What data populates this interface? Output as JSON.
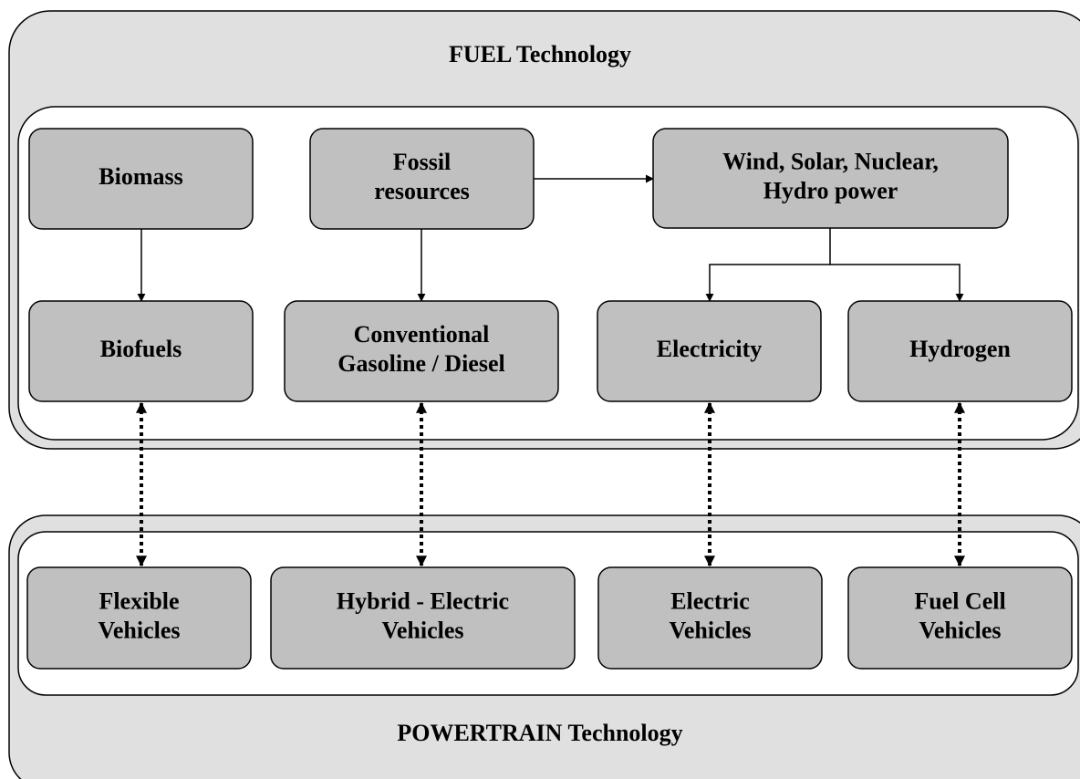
{
  "fuel": {
    "title": "FUEL Technology"
  },
  "powertrain": {
    "title": "POWERTRAIN Technology"
  },
  "nodes": [
    {
      "lines": [
        "Biomass"
      ]
    },
    {
      "lines": [
        "Fossil",
        "resources"
      ]
    },
    {
      "lines": [
        "Wind, Solar, Nuclear,",
        "Hydro power"
      ]
    },
    {
      "lines": [
        "Biofuels"
      ]
    },
    {
      "lines": [
        "Conventional",
        "Gasoline / Diesel"
      ]
    },
    {
      "lines": [
        "Electricity"
      ]
    },
    {
      "lines": [
        "Hydrogen"
      ]
    },
    {
      "lines": [
        "Flexible",
        "Vehicles"
      ]
    },
    {
      "lines": [
        "Hybrid - Electric",
        "Vehicles"
      ]
    },
    {
      "lines": [
        "Electric",
        "Vehicles"
      ]
    },
    {
      "lines": [
        "Fuel Cell",
        "Vehicles"
      ]
    }
  ]
}
